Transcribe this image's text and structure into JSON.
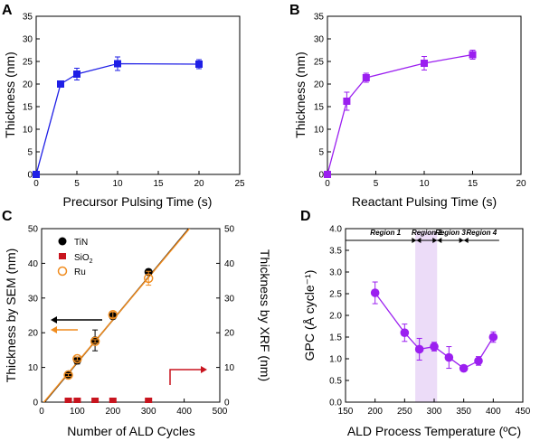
{
  "colors": {
    "panel_a": "#1f1fe6",
    "panel_b": "#9b1ff0",
    "tin": "#000000",
    "sio2": "#c8141e",
    "ru": "#f08c1e",
    "fit_orange": "#f08c1e",
    "panel_d": "#9b1ff0",
    "region_shade": "#ecdcf8",
    "arrow_black": "#000000",
    "arrow_orange": "#f08c1e",
    "arrow_red": "#c8141e"
  },
  "chart_data": [
    {
      "panel": "A",
      "type": "line",
      "xlabel": "Precursor Pulsing Time (s)",
      "ylabel": "Thickness (nm)",
      "xlim": [
        0,
        25
      ],
      "ylim": [
        0,
        35
      ],
      "xticks": [
        0,
        5,
        10,
        15,
        20,
        25
      ],
      "yticks": [
        0,
        5,
        10,
        15,
        20,
        25,
        30,
        35
      ],
      "series": [
        {
          "x": [
            0,
            3,
            5,
            10,
            20
          ],
          "y": [
            0,
            20.0,
            22.2,
            24.5,
            24.4
          ],
          "err": [
            0,
            0.5,
            1.3,
            1.5,
            1.0
          ]
        }
      ]
    },
    {
      "panel": "B",
      "type": "line",
      "xlabel": "Reactant Pulsing Time (s)",
      "ylabel": "Thickness (nm)",
      "xlim": [
        0,
        20
      ],
      "ylim": [
        0,
        35
      ],
      "xticks": [
        0,
        5,
        10,
        15,
        20
      ],
      "yticks": [
        0,
        5,
        10,
        15,
        20,
        25,
        30,
        35
      ],
      "series": [
        {
          "x": [
            0,
            2,
            4,
            10,
            15
          ],
          "y": [
            0,
            16.2,
            21.4,
            24.6,
            26.5
          ],
          "err": [
            0,
            2.0,
            1.0,
            1.5,
            1.0
          ]
        }
      ]
    },
    {
      "panel": "C",
      "type": "scatter",
      "xlabel": "Number of ALD Cycles",
      "ylabel": "Thickness by SEM (nm)",
      "y2label": "Thickness by XRF (nm)",
      "xlim": [
        0,
        500
      ],
      "ylim": [
        0,
        50
      ],
      "y2lim": [
        0,
        50
      ],
      "xticks": [
        0,
        100,
        200,
        300,
        400,
        500
      ],
      "yticks": [
        0,
        10,
        20,
        30,
        40,
        50
      ],
      "y2ticks": [
        0,
        10,
        20,
        30,
        40,
        50
      ],
      "legend": [
        "TiN",
        "SiO2",
        "Ru"
      ],
      "legend_position": "top-left",
      "series": [
        {
          "name": "TiN",
          "marker": "filled-circle",
          "x": [
            75,
            100,
            150,
            200,
            300
          ],
          "y": [
            8,
            12,
            17.8,
            24.8,
            37.5
          ],
          "err": [
            0.6,
            1.0,
            3.0,
            0.8,
            0.8
          ]
        },
        {
          "name": "SiO2",
          "marker": "filled-square",
          "x": [
            75,
            100,
            150,
            200,
            300
          ],
          "y": [
            0,
            0,
            0,
            0,
            0
          ]
        },
        {
          "name": "Ru",
          "marker": "open-circle",
          "x": [
            75,
            100,
            150,
            200,
            300
          ],
          "y": [
            7.8,
            12.5,
            17.5,
            25.2,
            35.7
          ],
          "err": [
            0.4,
            0.5,
            0.5,
            0.8,
            2.0
          ]
        }
      ],
      "fits": [
        {
          "color": "black",
          "slope": 0.1235,
          "intercept": -1.0
        },
        {
          "color": "orange",
          "slope": 0.1225,
          "intercept": -0.8
        }
      ]
    },
    {
      "panel": "D",
      "type": "line",
      "xlabel": "ALD Process Temperature (ºC)",
      "ylabel": "GPC (Å cycle⁻¹)",
      "xlim": [
        150,
        450
      ],
      "ylim": [
        0.0,
        4.0
      ],
      "xticks": [
        150,
        200,
        250,
        300,
        350,
        400,
        450
      ],
      "yticks": [
        0.0,
        0.5,
        1.0,
        1.5,
        2.0,
        2.5,
        3.0,
        3.5,
        4.0
      ],
      "regions": [
        {
          "label": "Region 1",
          "range": [
            150,
            270
          ]
        },
        {
          "label": "Region 2",
          "range": [
            270,
            305
          ]
        },
        {
          "label": "Region 3",
          "range": [
            305,
            350
          ]
        },
        {
          "label": "Region 4",
          "range": [
            350,
            410
          ]
        }
      ],
      "shaded_range": [
        268,
        305
      ],
      "series": [
        {
          "x": [
            200,
            250,
            275,
            300,
            325,
            350,
            375,
            400
          ],
          "y": [
            2.52,
            1.6,
            1.22,
            1.28,
            1.03,
            0.78,
            0.95,
            1.5
          ],
          "err": [
            0.25,
            0.2,
            0.25,
            0.1,
            0.25,
            0.05,
            0.1,
            0.12
          ]
        }
      ]
    }
  ],
  "panel_labels": {
    "a": "A",
    "b": "B",
    "c": "C",
    "d": "D"
  },
  "panel_c_legend": {
    "tin": "TiN",
    "sio2_base": "SiO",
    "sio2_sub": "2",
    "ru": "Ru"
  }
}
